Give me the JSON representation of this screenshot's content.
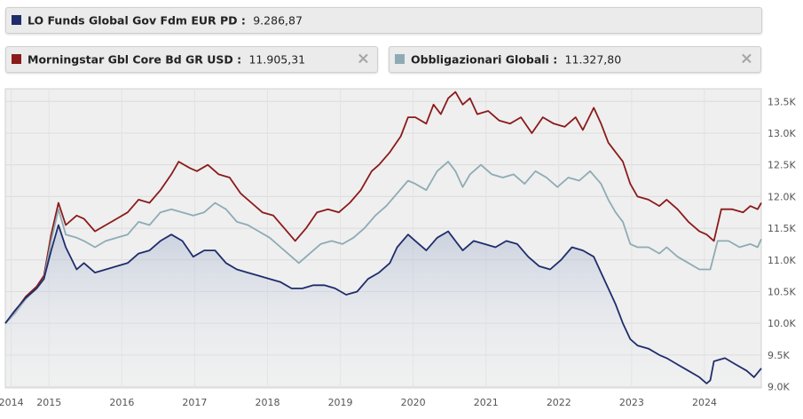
{
  "legend": [
    {
      "name": "LO Funds Global Gov Fdm EUR PD",
      "value": "9.286,87",
      "color": "#1f2d6b",
      "closable": false
    },
    {
      "name": "Morningstar Gbl Core Bd GR USD",
      "value": "11.905,31",
      "color": "#8b1a1a",
      "closable": true
    },
    {
      "name": "Obbligazionari Globali",
      "value": "11.327,80",
      "color": "#8eabb5",
      "closable": true
    }
  ],
  "close_glyph": "×",
  "chart_data": {
    "type": "line",
    "x_ticks": [
      "2014",
      "2015",
      "2016",
      "2017",
      "2018",
      "2019",
      "2020",
      "2021",
      "2022",
      "2023",
      "2024"
    ],
    "x_tick_pos": [
      2014.0,
      2014.52,
      2015.52,
      2016.52,
      2017.52,
      2018.52,
      2019.52,
      2020.52,
      2021.52,
      2022.52,
      2023.52
    ],
    "xlim": [
      2013.92,
      2024.3
    ],
    "y_ticks": [
      "13.5K",
      "13.0K",
      "12.5K",
      "12.0K",
      "11.5K",
      "11.0K",
      "10.5K",
      "10.0K",
      "9.5K",
      "9.0K"
    ],
    "y_tick_values": [
      13500,
      13000,
      12500,
      12000,
      11500,
      11000,
      10500,
      10000,
      9500,
      9000
    ],
    "ylim": [
      8980,
      13700
    ],
    "grid": true,
    "series": [
      {
        "name": "Morningstar Gbl Core Bd GR USD",
        "color": "#8b1a1a",
        "area": false,
        "points": [
          [
            2013.92,
            10000
          ],
          [
            2014.05,
            10180
          ],
          [
            2014.2,
            10420
          ],
          [
            2014.35,
            10580
          ],
          [
            2014.45,
            10750
          ],
          [
            2014.55,
            11400
          ],
          [
            2014.65,
            11900
          ],
          [
            2014.75,
            11550
          ],
          [
            2014.9,
            11700
          ],
          [
            2015.0,
            11650
          ],
          [
            2015.15,
            11450
          ],
          [
            2015.3,
            11550
          ],
          [
            2015.45,
            11650
          ],
          [
            2015.6,
            11750
          ],
          [
            2015.75,
            11950
          ],
          [
            2015.9,
            11900
          ],
          [
            2016.05,
            12100
          ],
          [
            2016.2,
            12350
          ],
          [
            2016.3,
            12550
          ],
          [
            2016.45,
            12450
          ],
          [
            2016.55,
            12400
          ],
          [
            2016.7,
            12500
          ],
          [
            2016.85,
            12350
          ],
          [
            2017.0,
            12300
          ],
          [
            2017.15,
            12050
          ],
          [
            2017.3,
            11900
          ],
          [
            2017.45,
            11750
          ],
          [
            2017.6,
            11700
          ],
          [
            2017.75,
            11500
          ],
          [
            2017.9,
            11300
          ],
          [
            2018.05,
            11500
          ],
          [
            2018.2,
            11750
          ],
          [
            2018.35,
            11800
          ],
          [
            2018.5,
            11750
          ],
          [
            2018.65,
            11900
          ],
          [
            2018.8,
            12100
          ],
          [
            2018.95,
            12400
          ],
          [
            2019.05,
            12500
          ],
          [
            2019.2,
            12700
          ],
          [
            2019.35,
            12950
          ],
          [
            2019.45,
            13250
          ],
          [
            2019.55,
            13250
          ],
          [
            2019.7,
            13150
          ],
          [
            2019.8,
            13450
          ],
          [
            2019.9,
            13300
          ],
          [
            2020.0,
            13550
          ],
          [
            2020.1,
            13650
          ],
          [
            2020.2,
            13450
          ],
          [
            2020.3,
            13550
          ],
          [
            2020.4,
            13300
          ],
          [
            2020.55,
            13350
          ],
          [
            2020.7,
            13200
          ],
          [
            2020.85,
            13150
          ],
          [
            2021.0,
            13250
          ],
          [
            2021.15,
            13000
          ],
          [
            2021.3,
            13250
          ],
          [
            2021.45,
            13150
          ],
          [
            2021.6,
            13100
          ],
          [
            2021.75,
            13250
          ],
          [
            2021.85,
            13050
          ],
          [
            2022.0,
            13400
          ],
          [
            2022.1,
            13150
          ],
          [
            2022.2,
            12850
          ],
          [
            2022.3,
            12700
          ],
          [
            2022.4,
            12550
          ],
          [
            2022.5,
            12200
          ],
          [
            2022.6,
            12000
          ],
          [
            2022.75,
            11950
          ],
          [
            2022.9,
            11850
          ],
          [
            2023.0,
            11950
          ],
          [
            2023.15,
            11800
          ],
          [
            2023.3,
            11600
          ],
          [
            2023.45,
            11450
          ],
          [
            2023.55,
            11400
          ],
          [
            2023.65,
            11300
          ],
          [
            2023.75,
            11800
          ],
          [
            2023.9,
            11800
          ],
          [
            2024.05,
            11750
          ],
          [
            2024.15,
            11850
          ],
          [
            2024.25,
            11800
          ],
          [
            2024.3,
            11900
          ]
        ]
      },
      {
        "name": "Obbligazionari Globali",
        "color": "#8eabb5",
        "area": false,
        "points": [
          [
            2013.92,
            10000
          ],
          [
            2014.05,
            10150
          ],
          [
            2014.2,
            10380
          ],
          [
            2014.35,
            10550
          ],
          [
            2014.45,
            10700
          ],
          [
            2014.55,
            11300
          ],
          [
            2014.65,
            11800
          ],
          [
            2014.75,
            11400
          ],
          [
            2014.9,
            11350
          ],
          [
            2015.0,
            11300
          ],
          [
            2015.15,
            11200
          ],
          [
            2015.3,
            11300
          ],
          [
            2015.45,
            11350
          ],
          [
            2015.6,
            11400
          ],
          [
            2015.75,
            11600
          ],
          [
            2015.9,
            11550
          ],
          [
            2016.05,
            11750
          ],
          [
            2016.2,
            11800
          ],
          [
            2016.35,
            11750
          ],
          [
            2016.5,
            11700
          ],
          [
            2016.65,
            11750
          ],
          [
            2016.8,
            11900
          ],
          [
            2016.95,
            11800
          ],
          [
            2017.1,
            11600
          ],
          [
            2017.25,
            11550
          ],
          [
            2017.4,
            11450
          ],
          [
            2017.55,
            11350
          ],
          [
            2017.7,
            11200
          ],
          [
            2017.85,
            11050
          ],
          [
            2017.95,
            10950
          ],
          [
            2018.1,
            11100
          ],
          [
            2018.25,
            11250
          ],
          [
            2018.4,
            11300
          ],
          [
            2018.55,
            11250
          ],
          [
            2018.7,
            11350
          ],
          [
            2018.85,
            11500
          ],
          [
            2019.0,
            11700
          ],
          [
            2019.15,
            11850
          ],
          [
            2019.3,
            12050
          ],
          [
            2019.45,
            12250
          ],
          [
            2019.55,
            12200
          ],
          [
            2019.7,
            12100
          ],
          [
            2019.85,
            12400
          ],
          [
            2020.0,
            12550
          ],
          [
            2020.1,
            12400
          ],
          [
            2020.2,
            12150
          ],
          [
            2020.3,
            12350
          ],
          [
            2020.45,
            12500
          ],
          [
            2020.6,
            12350
          ],
          [
            2020.75,
            12300
          ],
          [
            2020.9,
            12350
          ],
          [
            2021.05,
            12200
          ],
          [
            2021.2,
            12400
          ],
          [
            2021.35,
            12300
          ],
          [
            2021.5,
            12150
          ],
          [
            2021.65,
            12300
          ],
          [
            2021.8,
            12250
          ],
          [
            2021.95,
            12400
          ],
          [
            2022.1,
            12200
          ],
          [
            2022.2,
            11950
          ],
          [
            2022.3,
            11750
          ],
          [
            2022.4,
            11600
          ],
          [
            2022.5,
            11250
          ],
          [
            2022.6,
            11200
          ],
          [
            2022.75,
            11200
          ],
          [
            2022.9,
            11100
          ],
          [
            2023.0,
            11200
          ],
          [
            2023.15,
            11050
          ],
          [
            2023.3,
            10950
          ],
          [
            2023.45,
            10850
          ],
          [
            2023.6,
            10850
          ],
          [
            2023.7,
            11300
          ],
          [
            2023.85,
            11300
          ],
          [
            2024.0,
            11200
          ],
          [
            2024.15,
            11250
          ],
          [
            2024.25,
            11200
          ],
          [
            2024.3,
            11330
          ]
        ]
      },
      {
        "name": "LO Funds Global Gov Fdm EUR PD",
        "color": "#1f2d6b",
        "area": true,
        "points": [
          [
            2013.92,
            10000
          ],
          [
            2014.05,
            10200
          ],
          [
            2014.2,
            10400
          ],
          [
            2014.35,
            10550
          ],
          [
            2014.45,
            10700
          ],
          [
            2014.55,
            11150
          ],
          [
            2014.65,
            11550
          ],
          [
            2014.75,
            11200
          ],
          [
            2014.9,
            10850
          ],
          [
            2015.0,
            10950
          ],
          [
            2015.15,
            10800
          ],
          [
            2015.3,
            10850
          ],
          [
            2015.45,
            10900
          ],
          [
            2015.6,
            10950
          ],
          [
            2015.75,
            11100
          ],
          [
            2015.9,
            11150
          ],
          [
            2016.05,
            11300
          ],
          [
            2016.2,
            11400
          ],
          [
            2016.35,
            11300
          ],
          [
            2016.5,
            11050
          ],
          [
            2016.65,
            11150
          ],
          [
            2016.8,
            11150
          ],
          [
            2016.95,
            10950
          ],
          [
            2017.1,
            10850
          ],
          [
            2017.25,
            10800
          ],
          [
            2017.4,
            10750
          ],
          [
            2017.55,
            10700
          ],
          [
            2017.7,
            10650
          ],
          [
            2017.85,
            10550
          ],
          [
            2018.0,
            10550
          ],
          [
            2018.15,
            10600
          ],
          [
            2018.3,
            10600
          ],
          [
            2018.45,
            10550
          ],
          [
            2018.6,
            10450
          ],
          [
            2018.75,
            10500
          ],
          [
            2018.9,
            10700
          ],
          [
            2019.05,
            10800
          ],
          [
            2019.2,
            10950
          ],
          [
            2019.3,
            11200
          ],
          [
            2019.45,
            11400
          ],
          [
            2019.55,
            11300
          ],
          [
            2019.7,
            11150
          ],
          [
            2019.85,
            11350
          ],
          [
            2020.0,
            11450
          ],
          [
            2020.1,
            11300
          ],
          [
            2020.2,
            11150
          ],
          [
            2020.35,
            11300
          ],
          [
            2020.5,
            11250
          ],
          [
            2020.65,
            11200
          ],
          [
            2020.8,
            11300
          ],
          [
            2020.95,
            11250
          ],
          [
            2021.1,
            11050
          ],
          [
            2021.25,
            10900
          ],
          [
            2021.4,
            10850
          ],
          [
            2021.55,
            11000
          ],
          [
            2021.7,
            11200
          ],
          [
            2021.85,
            11150
          ],
          [
            2022.0,
            11050
          ],
          [
            2022.1,
            10800
          ],
          [
            2022.2,
            10550
          ],
          [
            2022.3,
            10300
          ],
          [
            2022.4,
            10000
          ],
          [
            2022.5,
            9750
          ],
          [
            2022.6,
            9650
          ],
          [
            2022.75,
            9600
          ],
          [
            2022.9,
            9500
          ],
          [
            2023.0,
            9450
          ],
          [
            2023.15,
            9350
          ],
          [
            2023.3,
            9250
          ],
          [
            2023.45,
            9150
          ],
          [
            2023.55,
            9050
          ],
          [
            2023.6,
            9100
          ],
          [
            2023.65,
            9400
          ],
          [
            2023.8,
            9450
          ],
          [
            2023.95,
            9350
          ],
          [
            2024.1,
            9250
          ],
          [
            2024.2,
            9150
          ],
          [
            2024.3,
            9290
          ]
        ]
      }
    ]
  }
}
